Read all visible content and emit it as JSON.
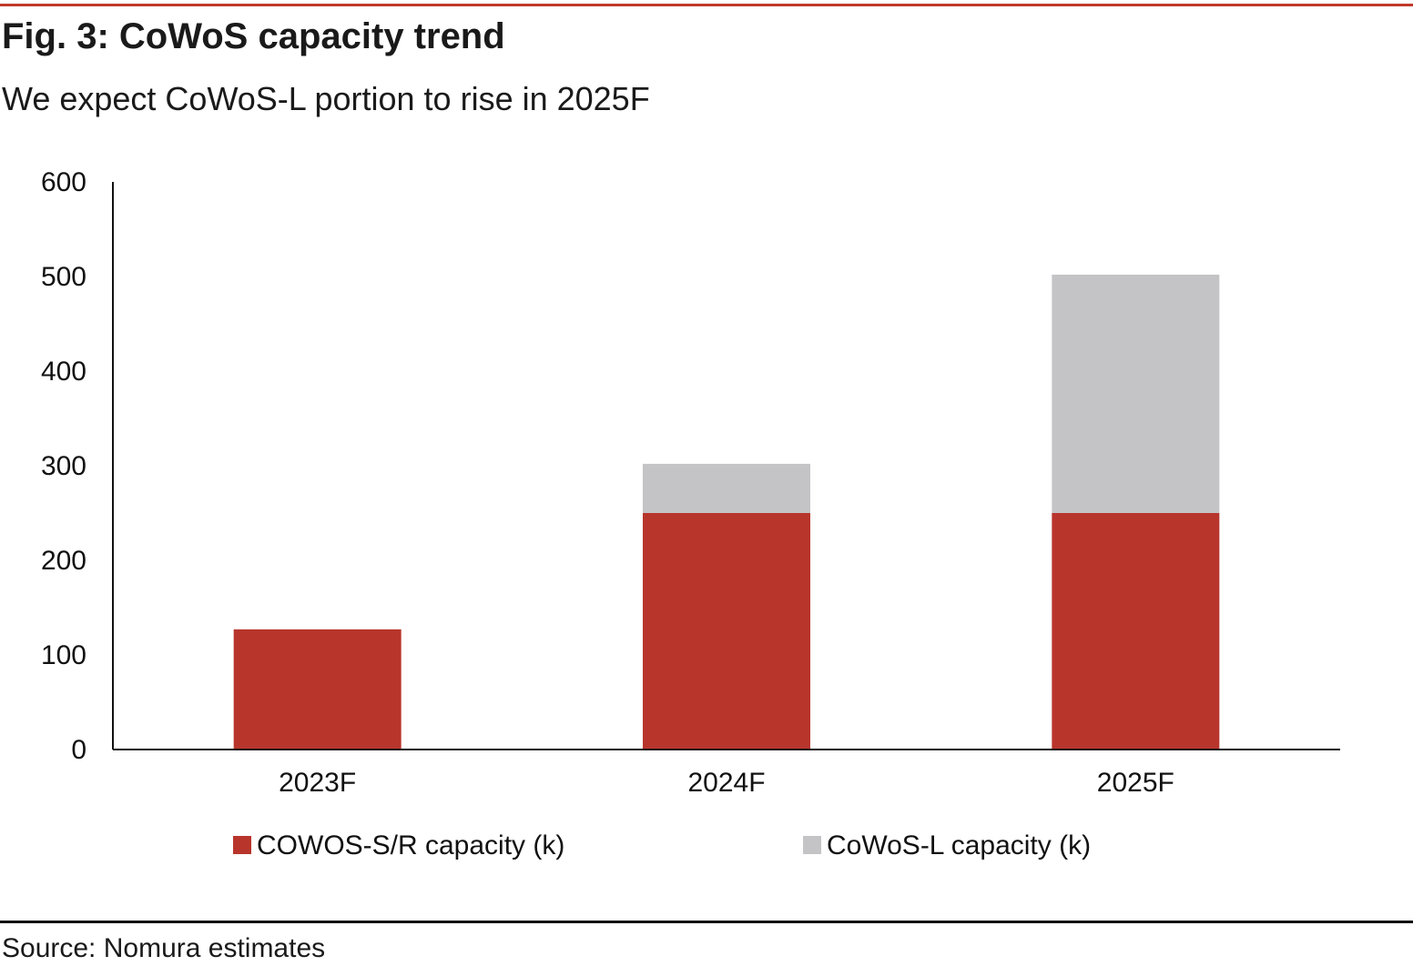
{
  "header": {
    "title": "Fig. 3: CoWoS capacity trend",
    "subtitle": "We expect CoWoS-L portion to rise in 2025F"
  },
  "footer": {
    "source": "Source: Nomura estimates"
  },
  "chart_data": {
    "type": "bar",
    "stacked": true,
    "categories": [
      "2023F",
      "2024F",
      "2025F"
    ],
    "series": [
      {
        "name": "COWOS-S/R capacity (k)",
        "values": [
          127,
          250,
          250
        ],
        "color": "#b8352c"
      },
      {
        "name": "CoWoS-L capacity (k)",
        "values": [
          0,
          52,
          252
        ],
        "color": "#c4c4c6"
      }
    ],
    "ylim": [
      0,
      600
    ],
    "yticks": [
      0,
      100,
      200,
      300,
      400,
      500,
      600
    ],
    "grid": false,
    "legend": "bottom"
  }
}
